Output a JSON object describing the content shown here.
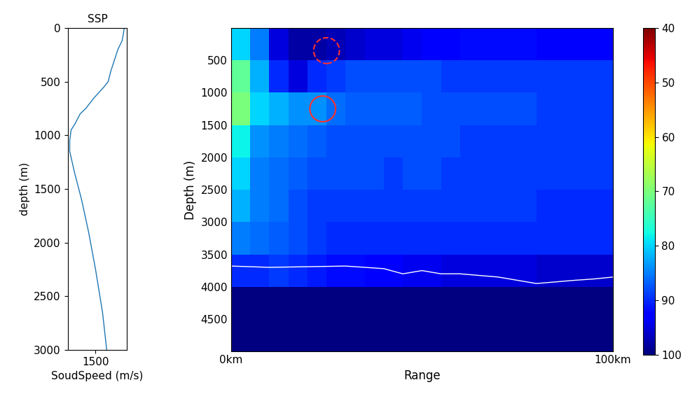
{
  "chart_data": [
    {
      "type": "line",
      "title": "SSP",
      "x_label": "SoudSpeed (m/s)",
      "y_label": "depth (m)",
      "series": [
        {
          "name": "SSP",
          "color": "#1f77b4",
          "x": [
            1541,
            1540,
            1538,
            1532,
            1527,
            1522,
            1518,
            1512,
            1505,
            1498,
            1492,
            1486,
            1478,
            1470,
            1465,
            1463,
            1463,
            1470,
            1480,
            1490,
            1500,
            1510,
            1516
          ],
          "values": [
            0,
            50,
            120,
            200,
            300,
            400,
            500,
            550,
            600,
            650,
            700,
            750,
            800,
            900,
            950,
            1050,
            1150,
            1350,
            1600,
            1900,
            2250,
            2650,
            3000
          ]
        }
      ],
      "xlim": [
        1460,
        1545
      ],
      "xticks": [
        1500
      ],
      "ylim": [
        3000,
        0
      ],
      "yticks": [
        0,
        500,
        1000,
        1500,
        2000,
        2500,
        3000
      ]
    },
    {
      "type": "heatmap",
      "x_label": "Range",
      "y_label": "Depth (m)",
      "range_edges": [
        0,
        5,
        10,
        15,
        20,
        25,
        30,
        35,
        40,
        45,
        50,
        55,
        60,
        65,
        70,
        75,
        80,
        85,
        90,
        95,
        100
      ],
      "depth_edges": [
        0,
        500,
        1000,
        1500,
        2000,
        2500,
        3000,
        3500,
        4000,
        4500,
        5000
      ],
      "cells": [
        [
          80,
          85,
          95,
          98,
          98,
          97,
          96,
          95,
          95,
          94,
          93,
          93,
          92,
          92,
          92,
          92,
          93,
          93,
          93,
          93
        ],
        [
          72,
          82,
          90,
          95,
          90,
          89,
          88,
          88,
          88,
          88,
          88,
          89,
          89,
          89,
          89,
          89,
          89,
          89,
          89,
          89
        ],
        [
          70,
          80,
          82,
          84,
          84,
          86,
          87,
          87,
          87,
          87,
          88,
          88,
          88,
          88,
          88,
          88,
          89,
          89,
          89,
          89
        ],
        [
          78,
          84,
          85,
          86,
          87,
          88,
          88,
          88,
          88,
          88,
          88,
          88,
          89,
          89,
          89,
          89,
          89,
          89,
          89,
          89
        ],
        [
          80,
          85,
          86,
          87,
          88,
          88,
          88,
          88,
          89,
          88,
          88,
          89,
          89,
          89,
          89,
          89,
          89,
          89,
          89,
          89
        ],
        [
          82,
          85,
          86,
          88,
          89,
          89,
          89,
          89,
          89,
          89,
          89,
          89,
          89,
          89,
          89,
          89,
          90,
          90,
          90,
          90
        ],
        [
          85,
          86,
          87,
          88,
          89,
          90,
          90,
          90,
          90,
          90,
          90,
          90,
          90,
          90,
          90,
          90,
          90,
          90,
          90,
          90
        ],
        [
          90,
          90,
          89,
          90,
          91,
          92,
          92,
          93,
          93,
          94,
          94,
          95,
          95,
          95,
          95,
          95,
          96,
          96,
          96,
          96
        ],
        [
          100,
          100,
          100,
          100,
          100,
          100,
          100,
          100,
          100,
          100,
          100,
          100,
          100,
          100,
          100,
          100,
          100,
          100,
          100,
          100
        ],
        [
          100,
          100,
          100,
          100,
          100,
          100,
          100,
          100,
          100,
          100,
          100,
          100,
          100,
          100,
          100,
          100,
          100,
          100,
          100,
          100
        ]
      ],
      "colorbar_range": [
        40,
        100
      ],
      "colorbar_ticks": [
        40,
        50,
        60,
        70,
        80,
        90,
        100
      ],
      "bathymetry": {
        "color": "#ffffff",
        "x": [
          0,
          10,
          20,
          30,
          40,
          45,
          50,
          55,
          60,
          70,
          80,
          90,
          95,
          100
        ],
        "values": [
          3680,
          3700,
          3690,
          3680,
          3720,
          3800,
          3750,
          3800,
          3800,
          3850,
          3950,
          3900,
          3880,
          3850
        ]
      },
      "circles": [
        {
          "x": 25,
          "y": 350,
          "color": "#ff3030",
          "line_style": "dashed"
        },
        {
          "x": 24,
          "y": 1250,
          "color": "#ff3030",
          "line_style": "solid"
        }
      ],
      "xlim": [
        0,
        100
      ],
      "xticks": [
        {
          "value": 0,
          "label": "0km"
        },
        {
          "value": 100,
          "label": "100km"
        }
      ],
      "ylim": [
        5000,
        0
      ],
      "yticks": [
        500,
        1000,
        1500,
        2000,
        2500,
        3000,
        3500,
        4000,
        4500
      ]
    }
  ]
}
